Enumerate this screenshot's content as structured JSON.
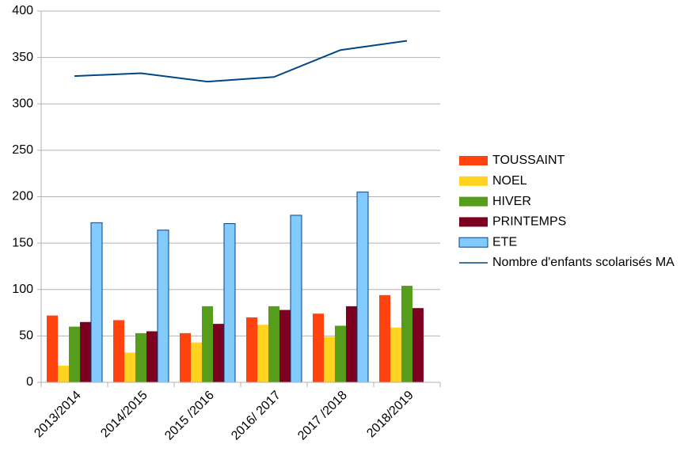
{
  "chart_data": {
    "type": "bar_line",
    "categories": [
      "2013/2014",
      "2014/2015",
      "2015 /2016",
      "2016/ 2017",
      "2017 /2018",
      "2018/2019"
    ],
    "series": [
      {
        "name": "TOUSSAINT",
        "color": "#ff420e",
        "type": "bar",
        "values": [
          72,
          67,
          53,
          70,
          74,
          94
        ]
      },
      {
        "name": "NOEL",
        "color": "#ffd320",
        "type": "bar",
        "values": [
          18,
          32,
          43,
          62,
          49,
          59
        ]
      },
      {
        "name": "HIVER",
        "color": "#579d1c",
        "type": "bar",
        "values": [
          60,
          53,
          82,
          82,
          61,
          104
        ]
      },
      {
        "name": "PRINTEMPS",
        "color": "#7e0021",
        "type": "bar",
        "values": [
          65,
          55,
          63,
          78,
          82,
          80
        ]
      },
      {
        "name": "ETE",
        "color": "#83caff",
        "type": "bar",
        "values": [
          172,
          164,
          171,
          180,
          205,
          null
        ]
      },
      {
        "name": "Nombre d'enfants scolarisés MA",
        "color": "#004586",
        "type": "line",
        "values": [
          330,
          333,
          324,
          329,
          358,
          368
        ]
      }
    ],
    "ylim": [
      0,
      400
    ],
    "yticks": [
      0,
      50,
      100,
      150,
      200,
      250,
      300,
      350,
      400
    ],
    "grid": true,
    "legend": "right"
  }
}
